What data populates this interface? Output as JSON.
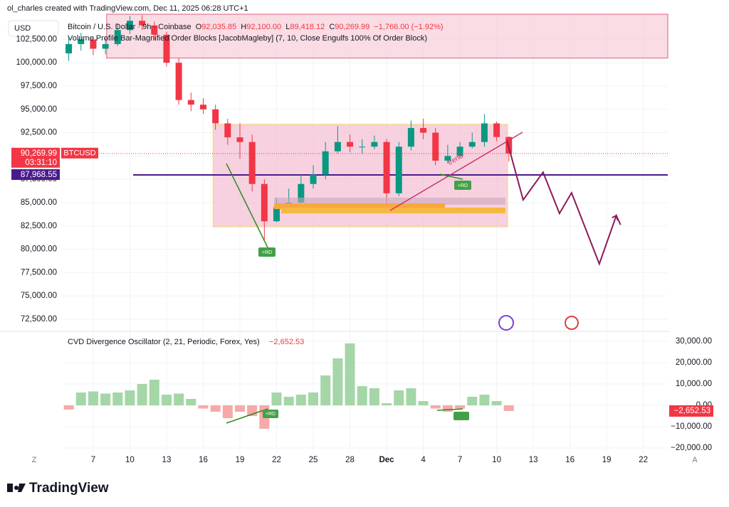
{
  "header": {
    "credit": "ol_charles created with TradingView.com, Dec 11, 2025 06:28 UTC+1",
    "currency": "USD"
  },
  "legend": {
    "symbol": "Bitcoin / U.S. Dollar · 9h · Coinbase",
    "ohlc": [
      {
        "key": "O",
        "text": "92,035.85"
      },
      {
        "key": "H",
        "text": "92,100.00"
      },
      {
        "key": "L",
        "text": "89,418.12"
      },
      {
        "key": "C",
        "text": "90,269.99"
      }
    ],
    "change": "−1,766.00 (−1.92%)",
    "indicator": "Volume Profile Bar-Magnified Order Blocks [JacobMagleby] (7, 10, Close Engulfs 100% Of Order Block)"
  },
  "annotations": {
    "rd": [
      "+RD",
      "+RD",
      "+RD"
    ],
    "trend": "trend"
  },
  "axis_buttons": {
    "left": "Z",
    "right": "A"
  },
  "footer": {
    "brand": "TradingView"
  },
  "chart_data": [
    {
      "type": "candlestick",
      "up_color": "#089981",
      "down_color": "#f23645",
      "x": [
        5,
        6,
        7,
        8,
        9,
        10,
        11,
        12,
        13,
        14,
        15,
        16,
        17,
        18,
        19,
        20,
        21,
        22,
        23,
        24,
        25,
        26,
        27,
        28,
        29,
        30,
        31,
        32,
        33,
        34,
        35,
        36,
        37,
        38,
        39,
        40,
        41
      ],
      "open": [
        101000,
        102000,
        102500,
        101500,
        102000,
        103500,
        104500,
        104000,
        103000,
        100000,
        96000,
        95500,
        95000,
        93500,
        92000,
        91500,
        87000,
        83000,
        84500,
        85000,
        87000,
        88000,
        90500,
        91500,
        91000,
        91000,
        91500,
        86000,
        91000,
        93000,
        92500,
        89500,
        90000,
        91000,
        91500,
        93500,
        92035.85
      ],
      "high": [
        102800,
        103200,
        102800,
        102700,
        104200,
        105000,
        105100,
        104400,
        103300,
        100500,
        96800,
        96200,
        95500,
        94000,
        93500,
        92300,
        87500,
        85500,
        86500,
        88000,
        89000,
        91500,
        93200,
        92300,
        91800,
        92200,
        91800,
        91500,
        93800,
        94000,
        93000,
        91200,
        91500,
        92500,
        94500,
        93700,
        92100
      ],
      "low": [
        100200,
        101300,
        100800,
        100900,
        101800,
        103100,
        103500,
        102400,
        99600,
        95500,
        94800,
        94500,
        92800,
        91200,
        89700,
        86200,
        81000,
        82900,
        84000,
        84600,
        86500,
        87500,
        90300,
        90400,
        90200,
        90700,
        84000,
        85700,
        90600,
        91800,
        89000,
        89200,
        89800,
        90800,
        91000,
        91600,
        89418.12
      ],
      "close": [
        102000,
        102500,
        101500,
        102000,
        103500,
        104500,
        104000,
        103000,
        100000,
        96000,
        95500,
        95000,
        93500,
        92000,
        91500,
        87000,
        83000,
        84500,
        85000,
        87000,
        88000,
        90500,
        91500,
        91000,
        91000,
        91500,
        86000,
        91000,
        93000,
        92500,
        89500,
        90000,
        91000,
        91500,
        93500,
        92035.85,
        90269.99
      ],
      "xlim": [
        4.5,
        54
      ],
      "xticks": [
        7,
        10,
        13,
        16,
        19,
        22,
        25,
        28,
        {
          "value": 31,
          "label": "Dec"
        },
        {
          "value": 34,
          "label": "4"
        },
        {
          "value": 37,
          "label": "7"
        },
        {
          "value": 40,
          "label": "10"
        },
        {
          "value": 43,
          "label": "13"
        },
        {
          "value": 46,
          "label": "16"
        },
        {
          "value": 49,
          "label": "19"
        },
        {
          "value": 52,
          "label": "22"
        }
      ],
      "ylim": [
        71500,
        105200
      ],
      "yticks": [
        {
          "value": 72500,
          "label": "72,500.00"
        },
        {
          "value": 75000,
          "label": "75,000.00"
        },
        {
          "value": 77500,
          "label": "77,500.00"
        },
        {
          "value": 80000,
          "label": "80,000.00"
        },
        {
          "value": 82500,
          "label": "82,500.00"
        },
        {
          "value": 85000,
          "label": "85,000.00"
        },
        {
          "value": 87500,
          "label": "87,500.00"
        },
        {
          "value": 90000,
          "label": "90,000.00"
        },
        {
          "value": 92500,
          "label": "92,500.00"
        },
        {
          "value": 95000,
          "label": "95,000.00"
        },
        {
          "value": 97500,
          "label": "97,500.00"
        },
        {
          "value": 100000,
          "label": "100,000.00"
        },
        {
          "value": 102500,
          "label": "102,500.00"
        }
      ],
      "last_price": {
        "value": 90269.99,
        "label": "90,269.99",
        "symbol": "BTCUSD",
        "countdown": "03:31:10",
        "color": "#f23645"
      },
      "hline": {
        "value": 87968.55,
        "label": "87,968.55",
        "color": "#4a1a8c"
      },
      "boxes": [
        {
          "x": [
            16.8,
            40.9
          ],
          "y": [
            82400,
            93400
          ],
          "fill": "#f3b8cf",
          "stroke": "#f5d76e"
        },
        {
          "x": [
            8.1,
            54
          ],
          "y": [
            100500,
            105200
          ],
          "fill": "#f7c9d6",
          "stroke": "#e0607e"
        }
      ],
      "projection": {
        "color": "#8b1a5a",
        "x": [
          40.84,
          42.17,
          43.8,
          45.14,
          46.13,
          48.4,
          49.79,
          50.14
        ],
        "y": [
          91692,
          85290,
          88262,
          83841,
          86052,
          78430,
          83613,
          82622
        ]
      }
    },
    {
      "type": "bar",
      "title": "CVD Divergence Oscillator (2, 21, Periodic, Forex, Yes)",
      "pos_color": "#a5d6a7",
      "neg_color": "#f7a9a7",
      "x": [
        5,
        6,
        7,
        8,
        9,
        10,
        11,
        12,
        13,
        14,
        15,
        16,
        17,
        18,
        19,
        20,
        21,
        22,
        23,
        24,
        25,
        26,
        27,
        28,
        29,
        30,
        31,
        32,
        33,
        34,
        35,
        36,
        37,
        38,
        39,
        40,
        41
      ],
      "values": [
        -2000,
        6000,
        6500,
        5500,
        6000,
        7000,
        10000,
        12000,
        5000,
        5500,
        3000,
        -1500,
        -3000,
        -6000,
        -3000,
        -5000,
        -11000,
        6000,
        4000,
        5000,
        6000,
        14000,
        22000,
        29000,
        9000,
        8000,
        1000,
        7000,
        8000,
        2000,
        -1500,
        -3000,
        -1500,
        4000,
        5000,
        2000,
        -2652.53
      ],
      "value_labels": [
        null,
        null,
        null,
        null,
        null,
        null,
        null,
        null,
        null,
        null,
        null,
        null,
        null,
        null,
        null,
        null,
        null,
        null,
        null,
        null,
        null,
        null,
        null,
        null,
        null,
        null,
        null,
        null,
        null,
        null,
        null,
        null,
        null,
        null,
        null,
        null,
        "−2,652.53"
      ],
      "ylim": [
        -23300,
        33300
      ],
      "yticks": [
        {
          "value": 30000,
          "label": "30,000.00"
        },
        {
          "value": 20000,
          "label": "20,000.00"
        },
        {
          "value": 10000,
          "label": "10,000.00"
        },
        {
          "value": 0,
          "label": "0.00"
        },
        {
          "value": -10000,
          "label": "−10,000.00"
        },
        {
          "value": -20000,
          "label": "−20,000.00"
        }
      ]
    }
  ]
}
